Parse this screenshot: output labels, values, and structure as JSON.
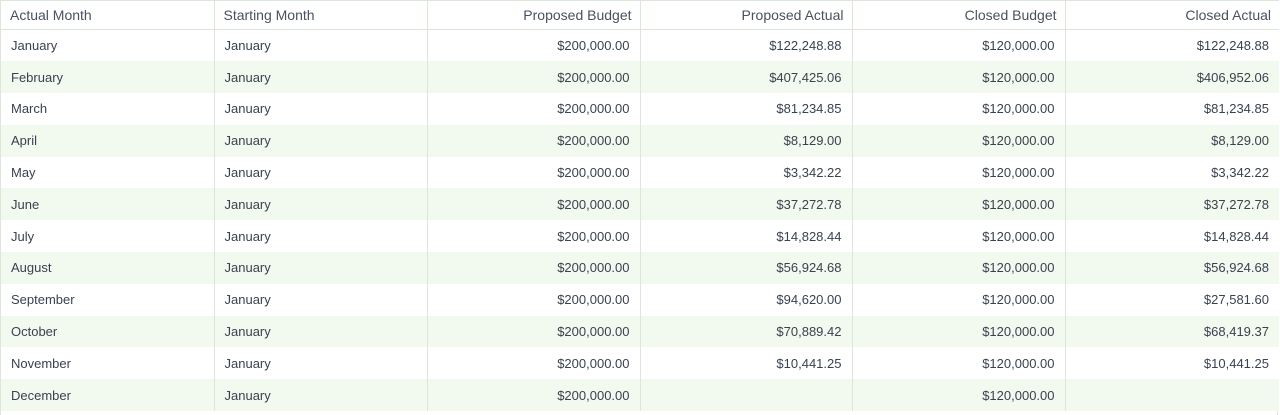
{
  "table": {
    "columns": [
      {
        "label": "Actual Month",
        "align": "left"
      },
      {
        "label": "Starting Month",
        "align": "left"
      },
      {
        "label": "Proposed Budget",
        "align": "right"
      },
      {
        "label": "Proposed Actual",
        "align": "right"
      },
      {
        "label": "Closed Budget",
        "align": "right"
      },
      {
        "label": "Closed Actual",
        "align": "right"
      }
    ],
    "rows": [
      [
        "January",
        "January",
        "$200,000.00",
        "$122,248.88",
        "$120,000.00",
        "$122,248.88"
      ],
      [
        "February",
        "January",
        "$200,000.00",
        "$407,425.06",
        "$120,000.00",
        "$406,952.06"
      ],
      [
        "March",
        "January",
        "$200,000.00",
        "$81,234.85",
        "$120,000.00",
        "$81,234.85"
      ],
      [
        "April",
        "January",
        "$200,000.00",
        "$8,129.00",
        "$120,000.00",
        "$8,129.00"
      ],
      [
        "May",
        "January",
        "$200,000.00",
        "$3,342.22",
        "$120,000.00",
        "$3,342.22"
      ],
      [
        "June",
        "January",
        "$200,000.00",
        "$37,272.78",
        "$120,000.00",
        "$37,272.78"
      ],
      [
        "July",
        "January",
        "$200,000.00",
        "$14,828.44",
        "$120,000.00",
        "$14,828.44"
      ],
      [
        "August",
        "January",
        "$200,000.00",
        "$56,924.68",
        "$120,000.00",
        "$56,924.68"
      ],
      [
        "September",
        "January",
        "$200,000.00",
        "$94,620.00",
        "$120,000.00",
        "$27,581.60"
      ],
      [
        "October",
        "January",
        "$200,000.00",
        "$70,889.42",
        "$120,000.00",
        "$68,419.37"
      ],
      [
        "November",
        "January",
        "$200,000.00",
        "$10,441.25",
        "$120,000.00",
        "$10,441.25"
      ],
      [
        "December",
        "January",
        "$200,000.00",
        "",
        "$120,000.00",
        ""
      ]
    ]
  },
  "colors": {
    "row_alt": "#f2f9ee",
    "border": "#dde6da",
    "text": "#3a4250"
  }
}
